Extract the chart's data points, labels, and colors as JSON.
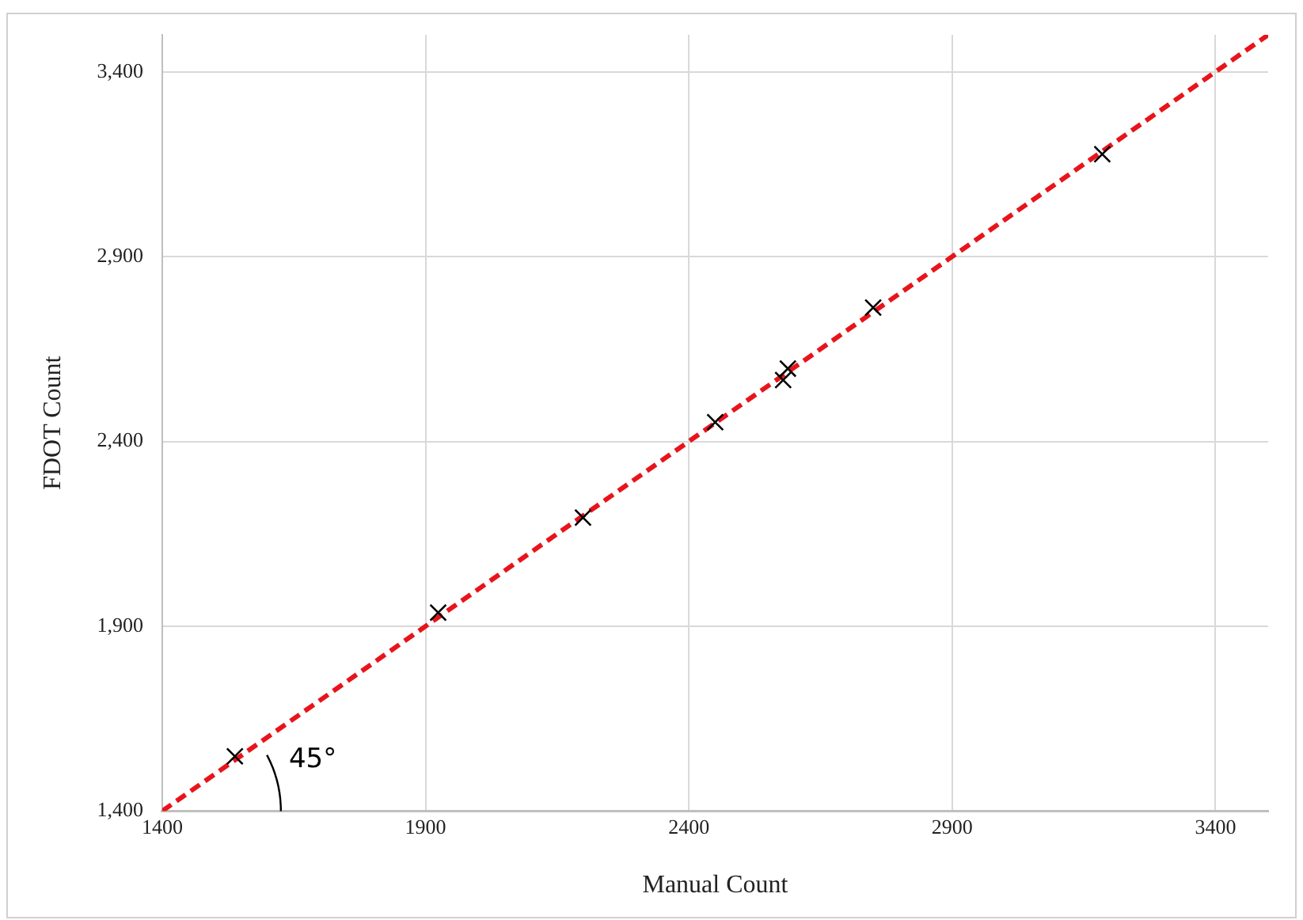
{
  "chart_data": {
    "type": "scatter",
    "xlabel": "Manual Count",
    "ylabel": "FDOT Count",
    "x": [
      1538,
      1924,
      2199,
      2450,
      2579,
      2588,
      2750,
      3185
    ],
    "series": [
      {
        "type": "scatter",
        "color": "#000000",
        "marker": "cross",
        "values": [
          1548,
          1937,
          2194,
          2452,
          2566,
          2597,
          2762,
          3177
        ]
      },
      {
        "type": "line",
        "color": "#e8141b",
        "line_style": "dashed",
        "marker": "none",
        "x": [
          1400,
          3500
        ],
        "values": [
          1400,
          3500
        ]
      }
    ],
    "xlim": [
      1400,
      3500
    ],
    "ylim": [
      1400,
      3500
    ],
    "xticks": [
      1400,
      1900,
      2400,
      2900,
      3400
    ],
    "yticks": [
      {
        "value": 1400,
        "label": "1,400"
      },
      {
        "value": 1900,
        "label": "1,900"
      },
      {
        "value": 2400,
        "label": "2,400"
      },
      {
        "value": 2900,
        "label": "2,900"
      },
      {
        "value": 3400,
        "label": "3,400"
      }
    ],
    "annotations": [
      "45°"
    ],
    "grid": true,
    "legend": false
  }
}
